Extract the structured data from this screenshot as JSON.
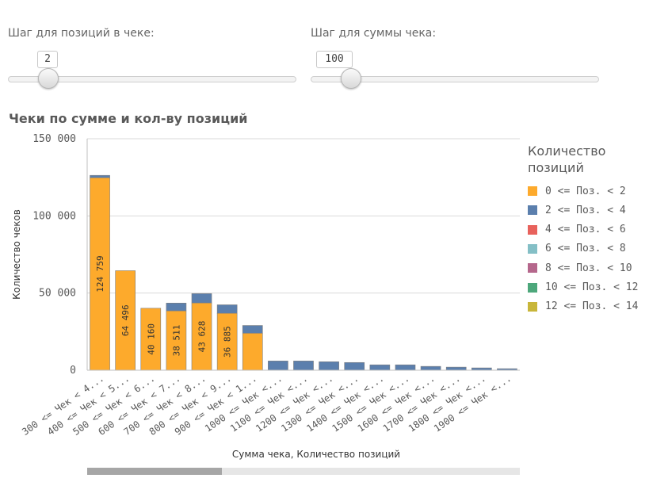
{
  "sliders": [
    {
      "label": "Шаг для позиций в чеке:",
      "value": "2",
      "level": 0.0
    },
    {
      "label": "Шаг для суммы чека:",
      "value": "100",
      "level": 0.0
    }
  ],
  "colors": {
    "series": [
      "#FDAA2C",
      "#5B7FAD",
      "#E8625C",
      "#84BFC6",
      "#B5678C",
      "#4DA77B",
      "#C8B63A"
    ],
    "bar_stroke": "#7f7f7f",
    "grid": "#d9d9d9"
  },
  "chart_data": {
    "type": "bar",
    "stacked": true,
    "title": "Чеки по сумме и кол-ву позиций",
    "xlabel": "Сумма чека, Количество позиций",
    "ylabel": "Количество чеков",
    "ylim": [
      0,
      150000
    ],
    "yticks": [
      0,
      50000,
      100000,
      150000
    ],
    "ytick_labels": [
      "0",
      "50 000",
      "100 000",
      "150 000"
    ],
    "grid": true,
    "legend_title": "Количество позиций",
    "legend_position": "right",
    "categories": [
      "300 <= Чек < 4...",
      "400 <= Чек < 5...",
      "500 <= Чек < 6...",
      "600 <= Чек < 7...",
      "700 <= Чек < 8...",
      "800 <= Чек < 9...",
      "900 <= Чек < 1...",
      "1000 <= Чек <...",
      "1100 <= Чек <...",
      "1200 <= Чек <...",
      "1300 <= Чек <...",
      "1400 <= Чек <...",
      "1500 <= Чек <...",
      "1600 <= Чек <...",
      "1700 <= Чек <...",
      "1800 <= Чек <...",
      "1900 <= Чек <..."
    ],
    "series": [
      {
        "name": "0 <= Поз. < 2",
        "values": [
          124759,
          64496,
          40160,
          38511,
          43628,
          36885,
          24000,
          0,
          0,
          0,
          0,
          0,
          0,
          0,
          0,
          0,
          0
        ],
        "labels": [
          "124 759",
          "64 496",
          "40 160",
          "38 511",
          "43 628",
          "36 885",
          "",
          "",
          "",
          "",
          "",
          "",
          "",
          "",
          "",
          "",
          ""
        ]
      },
      {
        "name": "2 <= Поз. < 4",
        "values": [
          1500,
          0,
          0,
          5000,
          6000,
          5500,
          5000,
          6000,
          6000,
          5500,
          5000,
          3500,
          3500,
          2500,
          2000,
          1500,
          1000
        ]
      },
      {
        "name": "4 <= Поз. < 6",
        "values": [
          0,
          0,
          0,
          0,
          0,
          0,
          0,
          0,
          0,
          0,
          0,
          0,
          0,
          0,
          0,
          0,
          0
        ]
      },
      {
        "name": "6 <= Поз. < 8",
        "values": [
          0,
          0,
          0,
          0,
          0,
          0,
          0,
          0,
          0,
          0,
          0,
          0,
          0,
          0,
          0,
          0,
          0
        ]
      },
      {
        "name": "8 <= Поз. < 10",
        "values": [
          0,
          0,
          0,
          0,
          0,
          0,
          0,
          0,
          0,
          0,
          0,
          0,
          0,
          0,
          0,
          0,
          0
        ]
      },
      {
        "name": "10 <= Поз. < 12",
        "values": [
          0,
          0,
          0,
          0,
          0,
          0,
          0,
          0,
          0,
          0,
          0,
          0,
          0,
          0,
          0,
          0,
          0
        ]
      },
      {
        "name": "12 <= Поз. < 14",
        "values": [
          0,
          0,
          0,
          0,
          0,
          0,
          0,
          0,
          0,
          0,
          0,
          0,
          0,
          0,
          0,
          0,
          0
        ]
      }
    ],
    "scroll_position": 0.0
  }
}
